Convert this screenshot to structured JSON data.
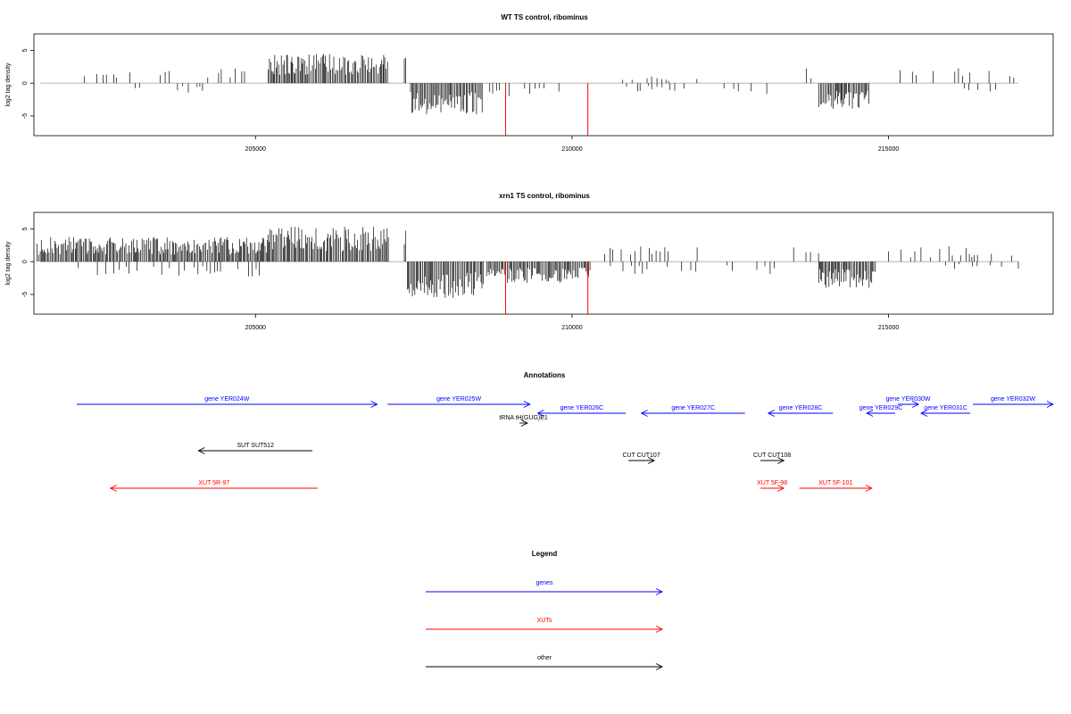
{
  "figure": {
    "panels": [
      {
        "title": "WT TS control, ribominus",
        "ylabel": "log2 tag density"
      },
      {
        "title": "xrn1 TS control, ribominus",
        "ylabel": "log2 tag density"
      }
    ],
    "annotations_title": "Annotations",
    "legend_title": "Legend"
  },
  "chart_data": [
    {
      "type": "bar",
      "title": "WT TS control, ribominus",
      "xlabel": "",
      "ylabel": "log2 tag density",
      "xlim": [
        201500,
        217600
      ],
      "ylim": [
        -8,
        7.5
      ],
      "xticks": [
        205000,
        210000,
        215000
      ],
      "xtick_labels": [
        "205000",
        "210000",
        "215000"
      ],
      "yticks": [
        5,
        0,
        -5
      ],
      "ytick_labels": [
        "5",
        "0",
        "-5"
      ],
      "colors": {
        "signal": "#000000",
        "marker": "#ff0000"
      },
      "highlight_positions": [
        208950,
        210250
      ],
      "segments": [
        {
          "from": 201550,
          "to": 201600,
          "sign": -1,
          "level": 2.3
        },
        {
          "from": 202300,
          "to": 203700,
          "sign": 1,
          "level": 1.7
        },
        {
          "from": 203000,
          "to": 203300,
          "sign": -1,
          "level": 1.0
        },
        {
          "from": 203700,
          "to": 204200,
          "sign": -1,
          "level": 1.3
        },
        {
          "from": 204200,
          "to": 204900,
          "sign": 1,
          "level": 1.8
        },
        {
          "from": 205200,
          "to": 207100,
          "sign": 1,
          "level": 3.6
        },
        {
          "from": 207350,
          "to": 207380,
          "sign": 1,
          "level": 4.5
        },
        {
          "from": 207450,
          "to": 208600,
          "sign": -1,
          "level": 3.8
        },
        {
          "from": 208700,
          "to": 209800,
          "sign": -1,
          "level": 1.8
        },
        {
          "from": 210800,
          "to": 212200,
          "sign": 1,
          "level": 0.9
        },
        {
          "from": 210800,
          "to": 211800,
          "sign": -1,
          "level": 1.0
        },
        {
          "from": 212400,
          "to": 213100,
          "sign": -1,
          "level": 1.4
        },
        {
          "from": 213500,
          "to": 213900,
          "sign": 1,
          "level": 2.0
        },
        {
          "from": 213900,
          "to": 214700,
          "sign": -1,
          "level": 3.2
        },
        {
          "from": 215100,
          "to": 217000,
          "sign": 1,
          "level": 1.9
        },
        {
          "from": 216200,
          "to": 216800,
          "sign": -1,
          "level": 1.3
        }
      ]
    },
    {
      "type": "bar",
      "title": "xrn1 TS control, ribominus",
      "xlabel": "",
      "ylabel": "log2 tag density",
      "xlim": [
        201500,
        217600
      ],
      "ylim": [
        -8,
        7.5
      ],
      "xticks": [
        205000,
        210000,
        215000
      ],
      "xtick_labels": [
        "205000",
        "210000",
        "215000"
      ],
      "yticks": [
        5,
        0,
        -5
      ],
      "ytick_labels": [
        "5",
        "0",
        "-5"
      ],
      "colors": {
        "signal": "#000000",
        "marker": "#ff0000"
      },
      "highlight_positions": [
        208950,
        210250
      ],
      "segments": [
        {
          "from": 201550,
          "to": 205200,
          "sign": 1,
          "level": 3.0
        },
        {
          "from": 202200,
          "to": 205200,
          "sign": -1,
          "level": 1.8
        },
        {
          "from": 205200,
          "to": 207100,
          "sign": 1,
          "level": 4.3
        },
        {
          "from": 207350,
          "to": 207380,
          "sign": 1,
          "level": 4.8
        },
        {
          "from": 207400,
          "to": 208600,
          "sign": -1,
          "level": 4.6
        },
        {
          "from": 208650,
          "to": 210300,
          "sign": -1,
          "level": 2.6
        },
        {
          "from": 210450,
          "to": 212100,
          "sign": 1,
          "level": 1.9
        },
        {
          "from": 210450,
          "to": 212100,
          "sign": -1,
          "level": 1.7
        },
        {
          "from": 212400,
          "to": 213200,
          "sign": -1,
          "level": 1.6
        },
        {
          "from": 213500,
          "to": 213900,
          "sign": 1,
          "level": 1.8
        },
        {
          "from": 213900,
          "to": 214800,
          "sign": -1,
          "level": 3.2
        },
        {
          "from": 215000,
          "to": 217000,
          "sign": 1,
          "level": 1.9
        },
        {
          "from": 215900,
          "to": 217100,
          "sign": -1,
          "level": 1.0
        }
      ]
    }
  ],
  "annotations": [
    {
      "label": "gene YER024W",
      "group": "genes",
      "from": 201650,
      "to": 207450,
      "dir": "right",
      "row": 0
    },
    {
      "label": "gene YER025W",
      "group": "genes",
      "from": 207650,
      "to": 210400,
      "dir": "right",
      "row": 0
    },
    {
      "label": "gene YER026C",
      "group": "genes",
      "from": 210550,
      "to": 212250,
      "dir": "left",
      "row": 1
    },
    {
      "label": "gene YER027C",
      "group": "genes",
      "from": 212550,
      "to": 214550,
      "dir": "left",
      "row": 1
    },
    {
      "label": "gene YER028C",
      "group": "genes",
      "from": 215000,
      "to": 216250,
      "dir": "left",
      "row": 1
    },
    {
      "label": "gene YER029C",
      "group": "genes",
      "from": 216900,
      "to": 217450,
      "dir": "left",
      "row": 1
    },
    {
      "label": "gene YER030W",
      "group": "genes",
      "from": 217500,
      "to": 217900,
      "dir": "right",
      "row": 0
    },
    {
      "label": "gene YER031C",
      "group": "genes",
      "from": 217950,
      "to": 218900,
      "dir": "left",
      "row": 1
    },
    {
      "label": "gene YER032W",
      "group": "genes",
      "from": 218950,
      "to": 220500,
      "dir": "right",
      "row": 0
    },
    {
      "label": "tRNA tH(GUG)E1",
      "group": "other",
      "from": 210200,
      "to": 210350,
      "dir": "right",
      "row": 2
    },
    {
      "label": "SUT SUT512",
      "group": "other",
      "from": 204000,
      "to": 206200,
      "dir": "left",
      "row": 3
    },
    {
      "label": "XUT 5R-97",
      "group": "XUTs",
      "from": 202300,
      "to": 206300,
      "dir": "left",
      "row": 5
    },
    {
      "label": "CUT CUT107",
      "group": "other",
      "from": 212300,
      "to": 212800,
      "dir": "right",
      "row": 4
    },
    {
      "label": "CUT CUT108",
      "group": "other",
      "from": 214850,
      "to": 215300,
      "dir": "right",
      "row": 4
    },
    {
      "label": "XUT 5F-98",
      "group": "XUTs",
      "from": 214850,
      "to": 215300,
      "dir": "right",
      "row": 5
    },
    {
      "label": "XUT 5F-101",
      "group": "XUTs",
      "from": 215600,
      "to": 217000,
      "dir": "right",
      "row": 5
    }
  ],
  "legend": [
    {
      "label": "genes",
      "color": "#0000ff"
    },
    {
      "label": "XUTs",
      "color": "#ff0000"
    },
    {
      "label": "other",
      "color": "#000000"
    }
  ]
}
